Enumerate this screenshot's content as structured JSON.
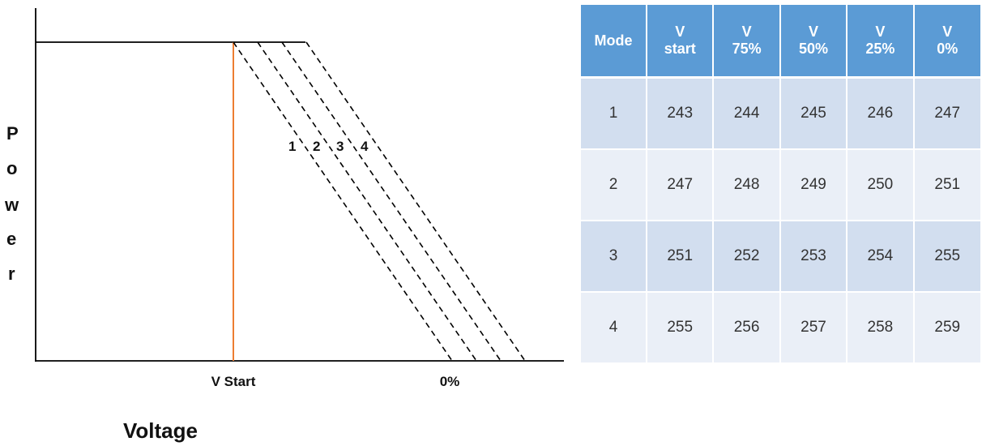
{
  "diagram": {
    "y_axis_letters": [
      "P",
      "o",
      "w",
      "e",
      "r"
    ],
    "x_axis_title": "Voltage",
    "x_ticks": [
      "V Start",
      "0%"
    ],
    "curve_labels": [
      "1",
      "2",
      "3",
      "4"
    ],
    "marker_color": "#ed7d31",
    "line_color": "#000000"
  },
  "table": {
    "headers": [
      [
        "Mode"
      ],
      [
        "V",
        "start"
      ],
      [
        "V",
        "75%"
      ],
      [
        "V",
        "50%"
      ],
      [
        "V",
        "25%"
      ],
      [
        "V",
        "0%"
      ]
    ],
    "rows": [
      [
        "1",
        "243",
        "244",
        "245",
        "246",
        "247"
      ],
      [
        "2",
        "247",
        "248",
        "249",
        "250",
        "251"
      ],
      [
        "3",
        "251",
        "252",
        "253",
        "254",
        "255"
      ],
      [
        "4",
        "255",
        "256",
        "257",
        "258",
        "259"
      ]
    ],
    "header_color": "#5b9bd5",
    "row_color_odd": "#d2deef",
    "row_color_even": "#eaeff7"
  }
}
